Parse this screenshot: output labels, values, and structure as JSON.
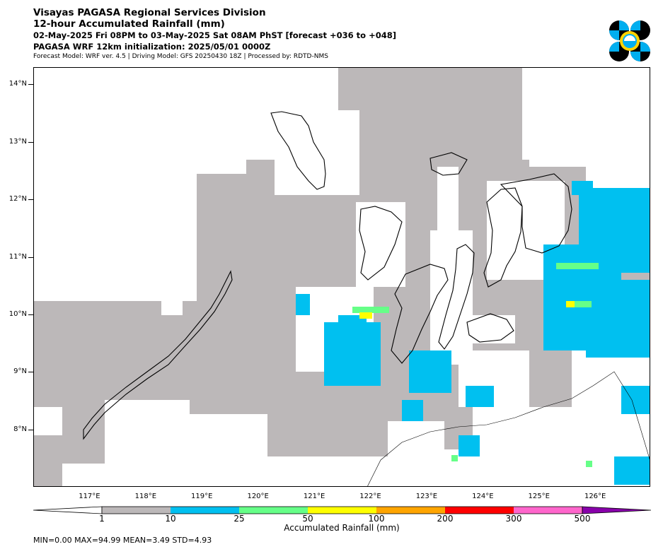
{
  "header": {
    "line1": "Visayas PAGASA Regional Services Division",
    "line2": "12-hour Accumulated Rainfall (mm)",
    "line3": "02-May-2025 Fri 08PM to 03-May-2025 Sat 08AM PhST [forecast +036 to +048]",
    "line4": "PAGASA WRF 12km initialization: 2025/05/01 0000Z",
    "line5": "Forecast Model: WRF ver. 4.5 | Driving Model: GFS 20250430 18Z | Processed by: RDTD-NMS"
  },
  "logo": {
    "icon": "pagasa-logo-icon",
    "colors": [
      "#000000",
      "#00aeef",
      "#ffd200"
    ]
  },
  "map": {
    "lat_labels": [
      "14°N",
      "13°N",
      "12°N",
      "11°N",
      "10°N",
      "9°N",
      "8°N"
    ],
    "lon_labels": [
      "117°E",
      "118°E",
      "119°E",
      "120°E",
      "121°E",
      "122°E",
      "123°E",
      "124°E",
      "125°E",
      "126°E"
    ],
    "lat_range": [
      7.0,
      14.3
    ],
    "lon_range": [
      116.0,
      126.98
    ]
  },
  "colorbar": {
    "title": "Accumulated Rainfall (mm)",
    "tick_labels": [
      "1",
      "10",
      "25",
      "50",
      "100",
      "200",
      "300",
      "500"
    ],
    "colors": [
      "#bcb8b9",
      "#00c0f0",
      "#66ff88",
      "#ffff00",
      "#ffa500",
      "#ff0000",
      "#ff66cc",
      "#8800aa"
    ]
  },
  "stats": "MIN=0.00   MAX=94.99   MEAN=3.49   STD=4.93"
}
